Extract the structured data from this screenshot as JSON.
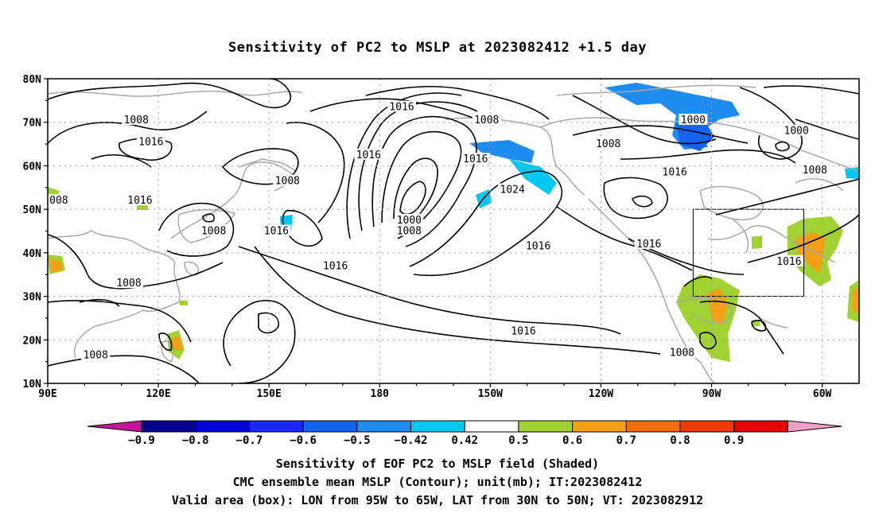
{
  "title": "Sensitivity of PC2 to MSLP at 2023082412 +1.5 day",
  "lat_labels": [
    "80N",
    "70N",
    "60N",
    "50N",
    "40N",
    "30N",
    "20N",
    "10N"
  ],
  "lon_labels": [
    "90E",
    "120E",
    "150E",
    "180",
    "150W",
    "120W",
    "90W",
    "60W"
  ],
  "contour_labels": [
    {
      "text": "1016",
      "lon": -174,
      "lat": 73.5
    },
    {
      "text": "1008",
      "lon": 114,
      "lat": 70.5
    },
    {
      "text": "1016",
      "lon": 118,
      "lat": 65.5
    },
    {
      "text": "1008",
      "lon": -151,
      "lat": 70.5
    },
    {
      "text": "1000",
      "lon": -95,
      "lat": 70.5
    },
    {
      "text": "1000",
      "lon": -67,
      "lat": 68
    },
    {
      "text": "1008",
      "lon": -118,
      "lat": 65
    },
    {
      "text": "1016",
      "lon": 177,
      "lat": 62.5
    },
    {
      "text": "1008",
      "lon": 155,
      "lat": 56.5
    },
    {
      "text": "1016",
      "lon": -154,
      "lat": 61.5
    },
    {
      "text": "1016",
      "lon": -100,
      "lat": 58.5
    },
    {
      "text": "1008",
      "lon": -62,
      "lat": 59
    },
    {
      "text": "1024",
      "lon": -144,
      "lat": 54.5
    },
    {
      "text": "1016",
      "lon": 115,
      "lat": 52
    },
    {
      "text": "008",
      "lon": 93,
      "lat": 52
    },
    {
      "text": "1000",
      "lon": -172,
      "lat": 47.5
    },
    {
      "text": "1008",
      "lon": -172,
      "lat": 45
    },
    {
      "text": "1008",
      "lon": 135,
      "lat": 45
    },
    {
      "text": "1016",
      "lon": 152,
      "lat": 45
    },
    {
      "text": "1016",
      "lon": -137,
      "lat": 41.5
    },
    {
      "text": "1016",
      "lon": -107,
      "lat": 42
    },
    {
      "text": "1016",
      "lon": -69,
      "lat": 38
    },
    {
      "text": "1016",
      "lon": 168,
      "lat": 37
    },
    {
      "text": "1008",
      "lon": 112,
      "lat": 33
    },
    {
      "text": "1016",
      "lon": -141,
      "lat": 22
    },
    {
      "text": "1008",
      "lon": -98,
      "lat": 17
    },
    {
      "text": "1008",
      "lon": 103,
      "lat": 16.5
    }
  ],
  "colorbar": {
    "labels": [
      "-0.9",
      "-0.8",
      "-0.7",
      "-0.6",
      "-0.5",
      "-0.42",
      "0.42",
      "0.5",
      "0.6",
      "0.7",
      "0.8",
      "0.9"
    ],
    "colors": [
      "#000090",
      "#0000dd",
      "#1a28ff",
      "#1464f0",
      "#1e8cf0",
      "#00c8f0",
      "#ffffff",
      "#a0d232",
      "#f5a014",
      "#f06e00",
      "#f03c00",
      "#e60000"
    ],
    "low_arrow": "#c81496",
    "high_arrow": "#f0a0c8"
  },
  "valid_box": {
    "lon_min": -95,
    "lon_max": -65,
    "lat_min": 30,
    "lat_max": 50
  },
  "captions": {
    "line1": "Sensitivity of EOF PC2 to MSLP field (Shaded)",
    "line2": "CMC ensemble mean MSLP (Contour); unit(mb); IT:2023082412",
    "line3": "Valid area (box): LON from 95W to 65W, LAT from 30N to 50N; VT: 2023082912"
  }
}
